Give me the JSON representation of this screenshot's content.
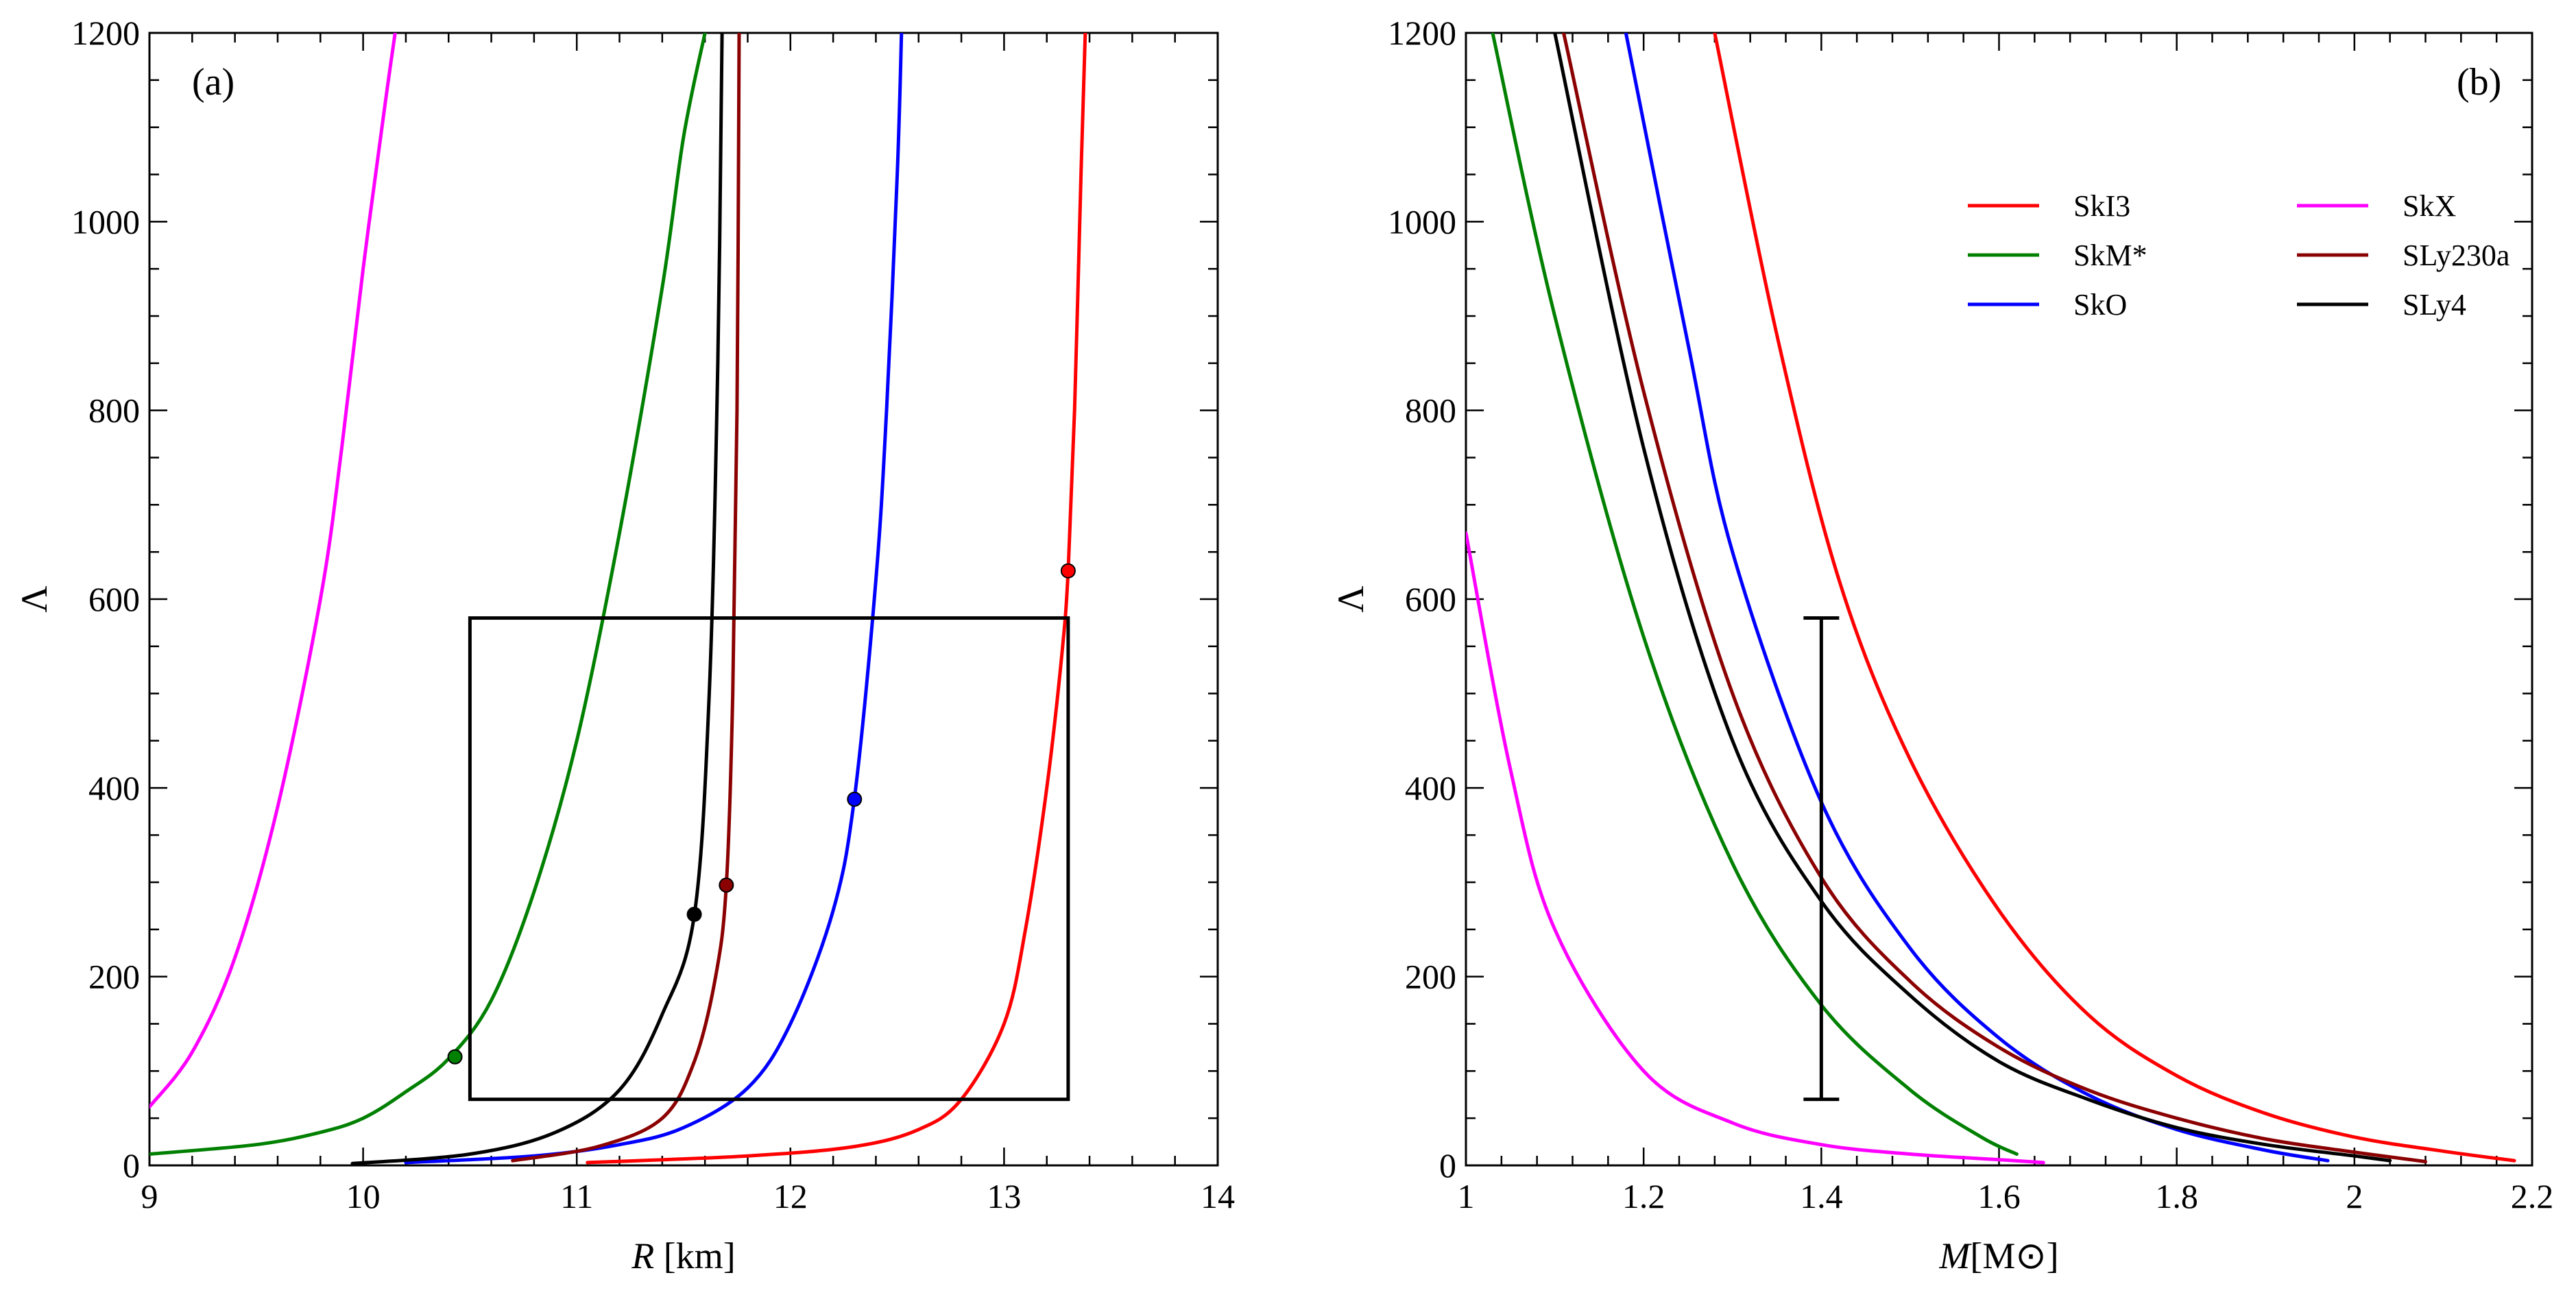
{
  "chart_data": [
    {
      "type": "line",
      "panel": "(a)",
      "xlabel_var": "R",
      "xlabel_unit": " [km]",
      "ylabel": "Λ",
      "xlim": [
        9,
        14
      ],
      "ylim": [
        0,
        1200
      ],
      "xticks": [
        "9",
        "10",
        "11",
        "12",
        "13",
        "14"
      ],
      "yticks": [
        "0",
        "200",
        "400",
        "600",
        "800",
        "1000",
        "1200"
      ],
      "series": [
        {
          "name": "SkI3",
          "color": "#ff0000",
          "x": [
            11.05,
            11.8,
            12.3,
            12.6,
            12.8,
            13.0,
            13.1,
            13.2,
            13.27,
            13.3,
            13.33,
            13.36,
            13.38
          ],
          "y": [
            3,
            10,
            20,
            38,
            70,
            150,
            250,
            400,
            540,
            630,
            800,
            1050,
            1200
          ]
        },
        {
          "name": "SkM*",
          "color": "#008000",
          "x": [
            9.0,
            9.5,
            9.8,
            10.0,
            10.2,
            10.4,
            10.6,
            10.8,
            11.0,
            11.2,
            11.4,
            11.5,
            11.6
          ],
          "y": [
            12,
            22,
            35,
            50,
            78,
            113,
            175,
            290,
            450,
            670,
            930,
            1090,
            1200
          ]
        },
        {
          "name": "SkO",
          "color": "#0000ff",
          "x": [
            10.2,
            10.8,
            11.2,
            11.5,
            11.8,
            12.0,
            12.2,
            12.3,
            12.4,
            12.45,
            12.5,
            12.52
          ],
          "y": [
            3,
            10,
            22,
            40,
            82,
            150,
            270,
            390,
            620,
            800,
            1050,
            1200
          ]
        },
        {
          "name": "SkX",
          "color": "#ff00ff",
          "x": [
            9.0,
            9.2,
            9.4,
            9.6,
            9.8,
            9.9,
            10.0,
            10.1,
            10.15
          ],
          "y": [
            62,
            120,
            220,
            380,
            600,
            760,
            950,
            1120,
            1200
          ]
        },
        {
          "name": "SLy230a",
          "color": "#8b0000",
          "x": [
            10.7,
            11.1,
            11.4,
            11.55,
            11.65,
            11.7,
            11.73,
            11.75,
            11.76
          ],
          "y": [
            5,
            20,
            50,
            110,
            200,
            297,
            500,
            800,
            1200
          ]
        },
        {
          "name": "SLy4",
          "color": "#000000",
          "x": [
            9.95,
            10.5,
            10.9,
            11.2,
            11.4,
            11.55,
            11.62,
            11.66,
            11.68
          ],
          "y": [
            2,
            12,
            35,
            80,
            160,
            265,
            500,
            850,
            1200
          ]
        }
      ],
      "markers": [
        {
          "series": "SkI3",
          "x": 13.3,
          "y": 630
        },
        {
          "series": "SkM*",
          "x": 10.43,
          "y": 115
        },
        {
          "series": "SkO",
          "x": 12.3,
          "y": 388
        },
        {
          "series": "SLy230a",
          "x": 11.7,
          "y": 297
        },
        {
          "series": "SLy4",
          "x": 11.55,
          "y": 266
        }
      ],
      "box": {
        "x0": 10.5,
        "x1": 13.3,
        "y0": 70,
        "y1": 580
      }
    },
    {
      "type": "line",
      "panel": "(b)",
      "xlabel_var": "M",
      "xlabel_unit": "[M⊙]",
      "ylabel": "Λ",
      "xlim": [
        1.0,
        2.2
      ],
      "ylim": [
        0,
        1200
      ],
      "xticks": [
        "1",
        "1.2",
        "1.4",
        "1.6",
        "1.8",
        "2",
        "2.2"
      ],
      "yticks": [
        "0",
        "200",
        "400",
        "600",
        "800",
        "1000",
        "1200"
      ],
      "series": [
        {
          "name": "SkI3",
          "color": "#ff0000",
          "x": [
            1.28,
            1.35,
            1.42,
            1.5,
            1.6,
            1.7,
            1.8,
            1.9,
            2.0,
            2.1,
            2.18
          ],
          "y": [
            1200,
            880,
            620,
            430,
            270,
            160,
            95,
            55,
            30,
            15,
            5
          ]
        },
        {
          "name": "SkM*",
          "color": "#008000",
          "x": [
            1.03,
            1.1,
            1.2,
            1.3,
            1.4,
            1.5,
            1.58,
            1.62
          ],
          "y": [
            1200,
            900,
            560,
            320,
            170,
            80,
            30,
            12
          ]
        },
        {
          "name": "SkO",
          "color": "#0000ff",
          "x": [
            1.18,
            1.25,
            1.3,
            1.4,
            1.5,
            1.6,
            1.7,
            1.8,
            1.9,
            1.97
          ],
          "y": [
            1200,
            870,
            650,
            385,
            230,
            135,
            75,
            38,
            16,
            5
          ]
        },
        {
          "name": "SkX",
          "color": "#ff00ff",
          "x": [
            1.0,
            1.05,
            1.1,
            1.2,
            1.3,
            1.4,
            1.5,
            1.6,
            1.65
          ],
          "y": [
            670,
            420,
            250,
            100,
            45,
            22,
            12,
            6,
            3
          ]
        },
        {
          "name": "SLy230a",
          "color": "#8b0000",
          "x": [
            1.11,
            1.2,
            1.3,
            1.4,
            1.5,
            1.6,
            1.7,
            1.8,
            1.9,
            2.0,
            2.08
          ],
          "y": [
            1200,
            820,
            500,
            305,
            195,
            125,
            80,
            50,
            28,
            14,
            4
          ]
        },
        {
          "name": "SLy4",
          "color": "#000000",
          "x": [
            1.1,
            1.2,
            1.3,
            1.4,
            1.5,
            1.6,
            1.7,
            1.8,
            1.9,
            2.0,
            2.04
          ],
          "y": [
            1200,
            760,
            450,
            280,
            180,
            110,
            70,
            40,
            22,
            10,
            5
          ]
        }
      ],
      "errorbar": {
        "x": 1.4,
        "y0": 70,
        "y1": 580
      }
    }
  ]
}
